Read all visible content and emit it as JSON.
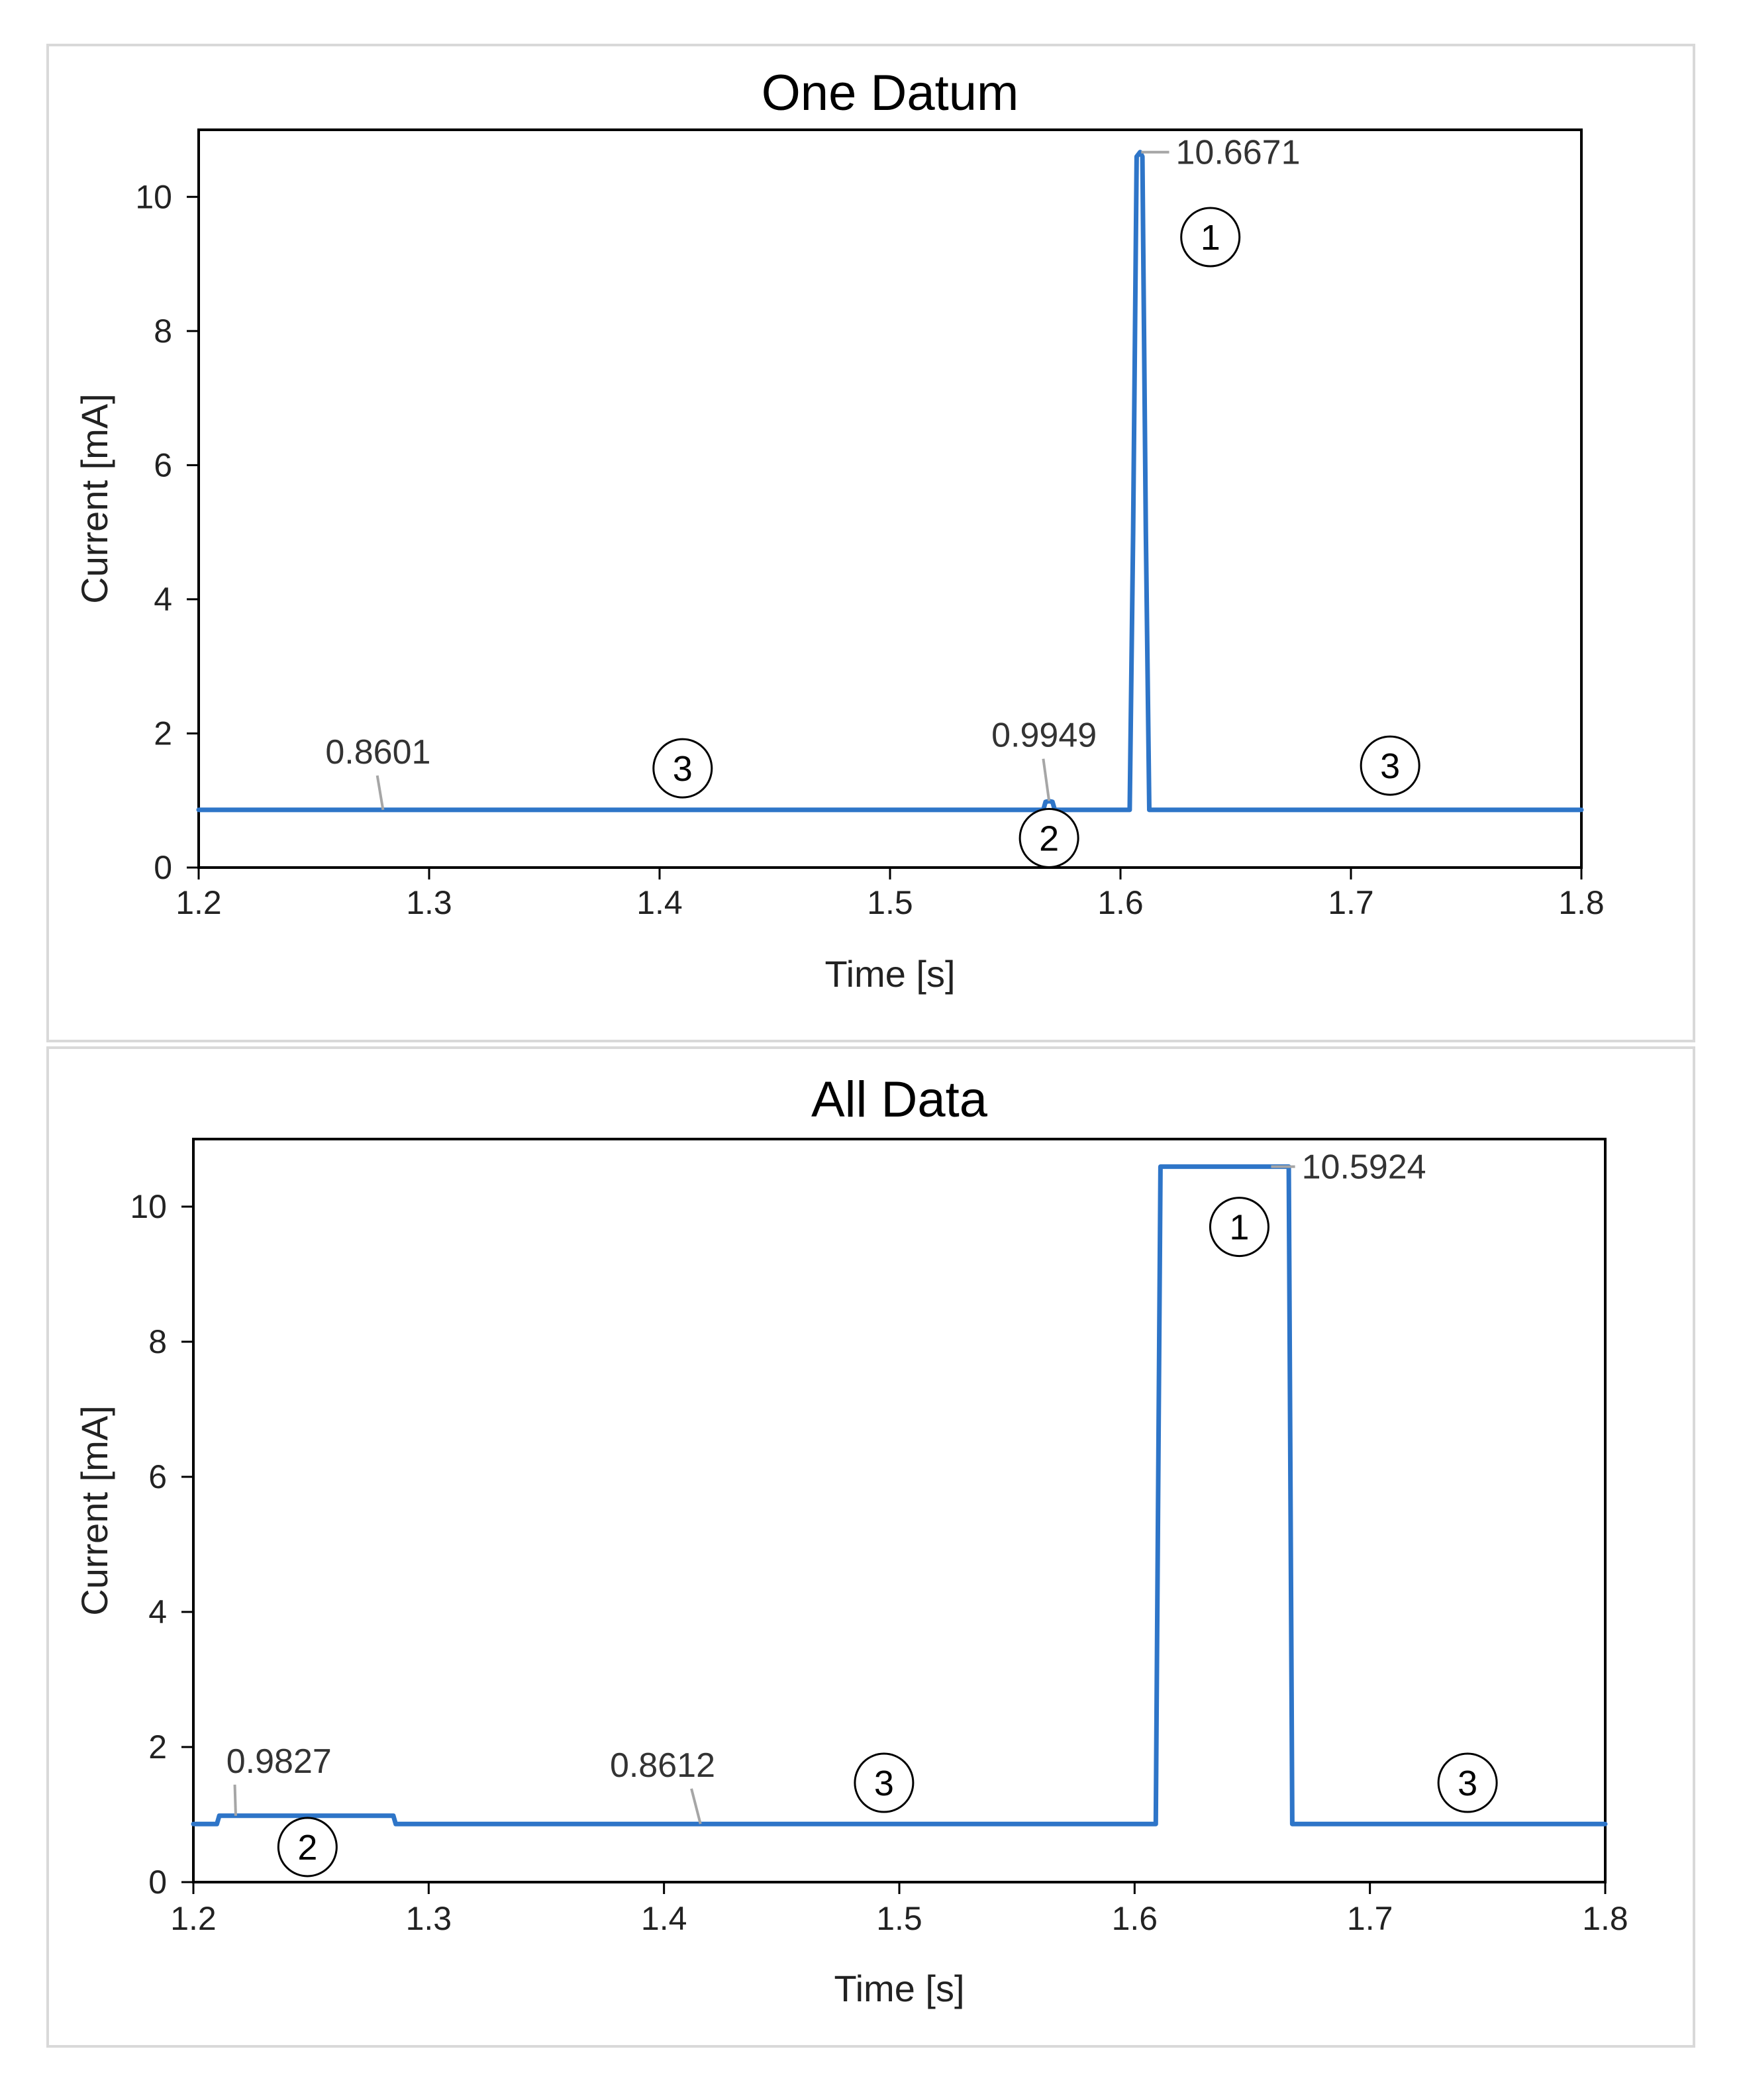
{
  "chart_data": [
    {
      "type": "line",
      "title": "One Datum",
      "xlabel": "Time [s]",
      "ylabel": "Current [mA]",
      "xlim": [
        1.2,
        1.8
      ],
      "ylim": [
        0,
        11
      ],
      "xticks": [
        "1.2",
        "1.3",
        "1.4",
        "1.5",
        "1.6",
        "1.7",
        "1.8"
      ],
      "yticks": [
        "0",
        "2",
        "4",
        "6",
        "8",
        "10"
      ],
      "line_color": "#2e75c8",
      "series": [
        {
          "name": "Current",
          "x": [
            1.2,
            1.5665,
            1.5675,
            1.569,
            1.5705,
            1.5715,
            1.604,
            1.6055,
            1.607,
            1.6085,
            1.6095,
            1.611,
            1.6125,
            1.8
          ],
          "y": [
            0.86,
            0.86,
            0.98,
            0.99,
            0.98,
            0.86,
            0.86,
            5.0,
            10.6,
            10.6671,
            10.6,
            5.0,
            0.86,
            0.86
          ]
        }
      ],
      "annotations": [
        {
          "text": "10.6671",
          "x": 1.609,
          "y": 10.6671,
          "lx": 1.624,
          "ly": 10.45
        },
        {
          "text": "0.9949",
          "x": 1.569,
          "y": 0.9949,
          "lx": 1.544,
          "ly": 1.8
        },
        {
          "text": "0.8601",
          "x": 1.28,
          "y": 0.8601,
          "lx": 1.255,
          "ly": 1.55
        }
      ],
      "markers": [
        {
          "text": "1",
          "x": 1.639,
          "y": 9.4
        },
        {
          "text": "2",
          "x": 1.569,
          "y": 0.44
        },
        {
          "text": "3",
          "x": 1.41,
          "y": 1.48
        },
        {
          "text": "3",
          "x": 1.717,
          "y": 1.52
        }
      ]
    },
    {
      "type": "line",
      "title": "All Data",
      "xlabel": "Time [s]",
      "ylabel": "Current [mA]",
      "xlim": [
        1.2,
        1.8
      ],
      "ylim": [
        0,
        11
      ],
      "xticks": [
        "1.2",
        "1.3",
        "1.4",
        "1.5",
        "1.6",
        "1.7",
        "1.8"
      ],
      "yticks": [
        "0",
        "2",
        "4",
        "6",
        "8",
        "10"
      ],
      "line_color": "#2e75c8",
      "series": [
        {
          "name": "Current",
          "x": [
            1.2,
            1.21,
            1.211,
            1.285,
            1.286,
            1.609,
            1.611,
            1.6655,
            1.667,
            1.8
          ],
          "y": [
            0.86,
            0.86,
            0.9827,
            0.9827,
            0.86,
            0.86,
            10.5924,
            10.5924,
            0.86,
            0.86
          ]
        }
      ],
      "annotations": [
        {
          "text": "10.5924",
          "x": 1.658,
          "y": 10.5924,
          "lx": 1.671,
          "ly": 10.35
        },
        {
          "text": "0.9827",
          "x": 1.218,
          "y": 0.9827,
          "lx": 1.214,
          "ly": 1.62
        },
        {
          "text": "0.8612",
          "x": 1.4155,
          "y": 0.8612,
          "lx": 1.377,
          "ly": 1.56
        }
      ],
      "markers": [
        {
          "text": "1",
          "x": 1.6445,
          "y": 9.7
        },
        {
          "text": "2",
          "x": 1.2485,
          "y": 0.52
        },
        {
          "text": "3",
          "x": 1.4935,
          "y": 1.47
        },
        {
          "text": "3",
          "x": 1.7415,
          "y": 1.47
        }
      ]
    }
  ]
}
